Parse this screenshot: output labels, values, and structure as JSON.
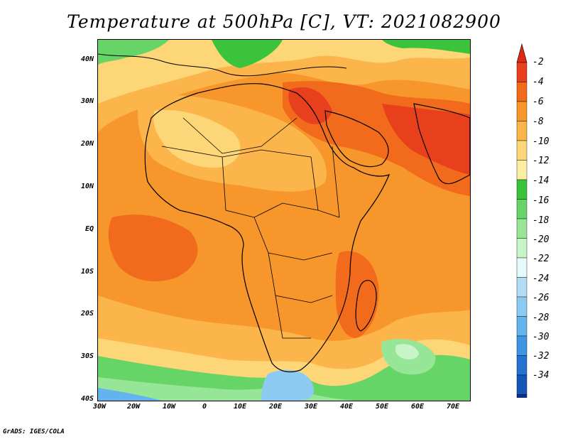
{
  "title": "Temperature at 500hPa [C], VT: 2021082900",
  "credit": "GrADS: IGES/COLA",
  "y_axis": [
    "40N",
    "30N",
    "20N",
    "10N",
    "EQ",
    "10S",
    "20S",
    "30S",
    "40S"
  ],
  "x_axis": [
    "30W",
    "20W",
    "10W",
    "0",
    "10E",
    "20E",
    "30E",
    "40E",
    "50E",
    "60E",
    "70E"
  ],
  "colorbar": {
    "labels": [
      "-2",
      "-4",
      "-6",
      "-8",
      "-10",
      "-12",
      "-14",
      "-16",
      "-18",
      "-20",
      "-22",
      "-24",
      "-26",
      "-28",
      "-30",
      "-32",
      "-34"
    ],
    "colors": [
      "#e8401c",
      "#f26a1b",
      "#f7962a",
      "#fbb54a",
      "#fdd677",
      "#fdeea6",
      "#3cc33c",
      "#66d466",
      "#97e597",
      "#c8f5c8",
      "#e6fbfb",
      "#b3dcf5",
      "#8ccaf2",
      "#63b3ec",
      "#3d97e0",
      "#2573d0",
      "#1557b5",
      "#0b2f8a"
    ],
    "top_arrow_color": "#e02812",
    "bottom_arrow_color": "#e8e8f8"
  },
  "fill_colors": {
    "base": "#f7962a",
    "warm": "#f26a1b",
    "hot": "#e8401c",
    "mild": "#fbb54a",
    "cool": "#fdd677",
    "cooler": "#fdeea6",
    "green": "#3cc33c",
    "lightgreen": "#66d466",
    "palegreen": "#97e597",
    "paleblue": "#c8f5c8",
    "lightblue": "#8ccaf2",
    "blue": "#63b3ec"
  }
}
